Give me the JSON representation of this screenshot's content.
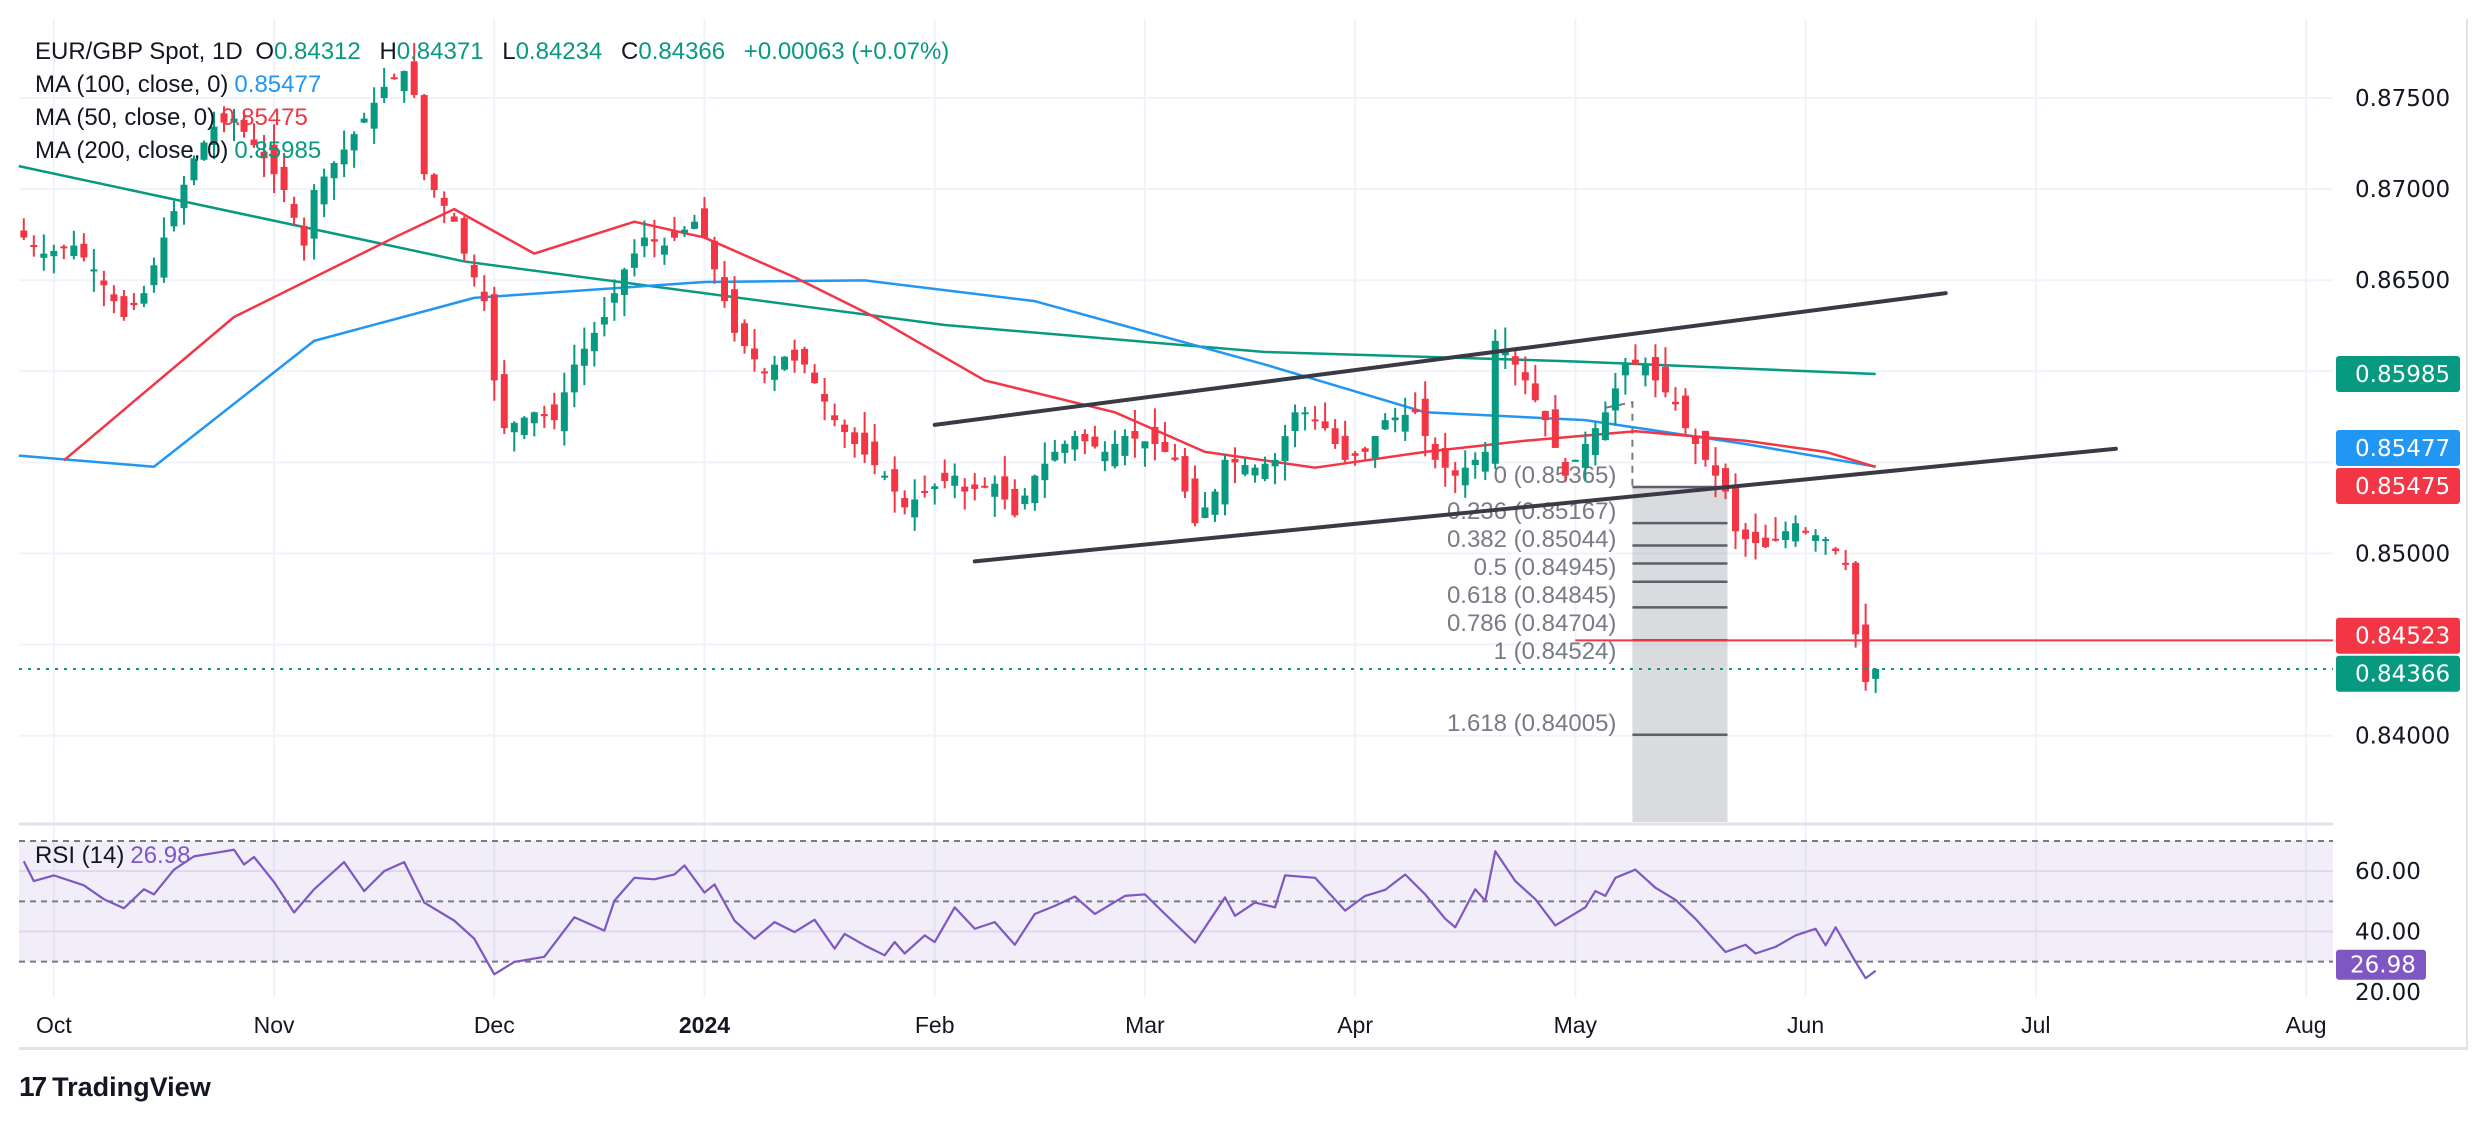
{
  "legend": {
    "symbol": "EUR/GBP Spot, 1D",
    "o_label": "O",
    "o_value": "0.84312",
    "h_label": "H",
    "h_value": "0.84371",
    "l_label": "L",
    "l_value": "0.84234",
    "c_label": "C",
    "c_value": "0.84366",
    "change": "+0.00063 (+0.07%)",
    "ma100_label": "MA (100, close, 0)",
    "ma100_value": "0.85477",
    "ma50_label": "MA (50, close, 0)",
    "ma50_value": "0.85475",
    "ma200_label": "MA (200, close, 0)",
    "ma200_value": "0.85985",
    "rsi_label": "RSI (14)",
    "rsi_value": "26.98"
  },
  "colors": {
    "up": "#089981",
    "down": "#f23645",
    "ma100": "#2196f3",
    "ma50": "#f23645",
    "ma200": "#089981",
    "rsi": "#7e57c2",
    "trendline": "#3a3a45"
  },
  "footer": {
    "brand": "TradingView"
  },
  "chart_data": {
    "type": "candlestick",
    "title": "EUR/GBP Spot, 1D",
    "ylim": [
      0.8355,
      0.8785
    ],
    "price_ticks": [
      "0.87500",
      "0.87000",
      "0.86500",
      "0.86000",
      "0.85500",
      "0.85000",
      "0.84500",
      "0.84000"
    ],
    "price_tick_values_shown": [
      "0.87500",
      "0.87000",
      "0.86500",
      "0.85000",
      "0.84000"
    ],
    "time_labels": [
      {
        "label": "Oct",
        "bar": 3
      },
      {
        "label": "Nov",
        "bar": 25
      },
      {
        "label": "Dec",
        "bar": 47
      },
      {
        "label": "2024",
        "bar": 68,
        "bold": true
      },
      {
        "label": "Feb",
        "bar": 91
      },
      {
        "label": "Mar",
        "bar": 112
      },
      {
        "label": "Apr",
        "bar": 133
      },
      {
        "label": "May",
        "bar": 155
      },
      {
        "label": "Jun",
        "bar": 178
      },
      {
        "label": "Jul",
        "bar": 201
      },
      {
        "label": "Aug",
        "bar": 228
      }
    ],
    "close_keypoints": [
      [
        0,
        0.86734
      ],
      [
        2,
        0.86646
      ],
      [
        5,
        0.8669
      ],
      [
        7,
        0.86559
      ],
      [
        10,
        0.86298
      ],
      [
        12,
        0.86429
      ],
      [
        14,
        0.86734
      ],
      [
        17,
        0.87169
      ],
      [
        19,
        0.87343
      ],
      [
        21,
        0.87387
      ],
      [
        24,
        0.87169
      ],
      [
        26,
        0.86995
      ],
      [
        28,
        0.8669
      ],
      [
        29,
        0.86995
      ],
      [
        32,
        0.87217
      ],
      [
        34,
        0.87387
      ],
      [
        36,
        0.87561
      ],
      [
        38,
        0.87648
      ],
      [
        39,
        0.87517
      ],
      [
        40,
        0.87082
      ],
      [
        43,
        0.86821
      ],
      [
        44,
        0.86646
      ],
      [
        46,
        0.86385
      ],
      [
        47,
        0.8595
      ],
      [
        48,
        0.85688
      ],
      [
        51,
        0.85775
      ],
      [
        53,
        0.85732
      ],
      [
        55,
        0.86037
      ],
      [
        58,
        0.86298
      ],
      [
        60,
        0.86559
      ],
      [
        62,
        0.86734
      ],
      [
        64,
        0.8669
      ],
      [
        67,
        0.86821
      ],
      [
        68,
        0.86734
      ],
      [
        70,
        0.86385
      ],
      [
        71,
        0.86211
      ],
      [
        74,
        0.85993
      ],
      [
        76,
        0.8608
      ],
      [
        78,
        0.86037
      ],
      [
        81,
        0.85732
      ],
      [
        83,
        0.85601
      ],
      [
        86,
        0.85427
      ],
      [
        88,
        0.85253
      ],
      [
        90,
        0.8534
      ],
      [
        93,
        0.85427
      ],
      [
        94,
        0.8534
      ],
      [
        97,
        0.85383
      ],
      [
        99,
        0.85209
      ],
      [
        101,
        0.85427
      ],
      [
        103,
        0.85558
      ],
      [
        105,
        0.85645
      ],
      [
        108,
        0.85558
      ],
      [
        110,
        0.85645
      ],
      [
        113,
        0.85601
      ],
      [
        115,
        0.85514
      ],
      [
        117,
        0.85166
      ],
      [
        119,
        0.8534
      ],
      [
        120,
        0.85514
      ],
      [
        123,
        0.85471
      ],
      [
        125,
        0.85514
      ],
      [
        127,
        0.85775
      ],
      [
        128,
        0.85775
      ],
      [
        130,
        0.85688
      ],
      [
        132,
        0.85514
      ],
      [
        134,
        0.85558
      ],
      [
        136,
        0.85732
      ],
      [
        139,
        0.85775
      ],
      [
        141,
        0.85514
      ],
      [
        143,
        0.85427
      ],
      [
        144,
        0.85471
      ],
      [
        146,
        0.85558
      ],
      [
        147,
        0.86167
      ],
      [
        148,
        0.86123
      ],
      [
        150,
        0.8595
      ],
      [
        152,
        0.85732
      ],
      [
        154,
        0.85427
      ],
      [
        155,
        0.85514
      ],
      [
        157,
        0.85688
      ],
      [
        158,
        0.85775
      ],
      [
        160,
        0.86037
      ],
      [
        162,
        0.86037
      ],
      [
        163,
        0.8595
      ],
      [
        165,
        0.85819
      ],
      [
        166,
        0.85688
      ],
      [
        168,
        0.85514
      ],
      [
        170,
        0.8534
      ],
      [
        171,
        0.85122
      ],
      [
        172,
        0.85079
      ],
      [
        174,
        0.85035
      ],
      [
        175,
        0.85079
      ],
      [
        177,
        0.85166
      ],
      [
        178,
        0.85122
      ],
      [
        180,
        0.85079
      ],
      [
        182,
        0.84948
      ],
      [
        183,
        0.84556
      ],
      [
        184,
        0.84295
      ],
      [
        185,
        0.84366
      ]
    ],
    "last_ohlc": {
      "open": 0.84312,
      "high": 0.84371,
      "low": 0.84234,
      "close": 0.84366
    },
    "series": [
      {
        "name": "MA (200, close, 0)",
        "color": "#089981",
        "points": [
          [
            -0.5,
            0.87126
          ],
          [
            44,
            0.86603
          ],
          [
            92,
            0.86254
          ],
          [
            124,
            0.86106
          ],
          [
            155,
            0.86054
          ],
          [
            185,
            0.85985
          ]
        ]
      },
      {
        "name": "MA (100, close, 0)",
        "color": "#2196f3",
        "points": [
          [
            -0.5,
            0.85537
          ],
          [
            13,
            0.85476
          ],
          [
            29,
            0.86167
          ],
          [
            45,
            0.86403
          ],
          [
            68,
            0.8649
          ],
          [
            84,
            0.86499
          ],
          [
            101,
            0.86385
          ],
          [
            124,
            0.86037
          ],
          [
            140,
            0.85775
          ],
          [
            156,
            0.85732
          ],
          [
            172,
            0.85601
          ],
          [
            185,
            0.85477
          ]
        ]
      },
      {
        "name": "MA (50, close, 0)",
        "color": "#f23645",
        "points": [
          [
            4,
            0.85511
          ],
          [
            21,
            0.86298
          ],
          [
            37,
            0.86734
          ],
          [
            43,
            0.8689
          ],
          [
            51,
            0.86646
          ],
          [
            61,
            0.86821
          ],
          [
            68,
            0.86734
          ],
          [
            77,
            0.86516
          ],
          [
            85,
            0.86298
          ],
          [
            96,
            0.8595
          ],
          [
            109,
            0.85775
          ],
          [
            118,
            0.85558
          ],
          [
            129,
            0.85471
          ],
          [
            140,
            0.85558
          ],
          [
            150,
            0.85619
          ],
          [
            161,
            0.85671
          ],
          [
            172,
            0.85619
          ],
          [
            180,
            0.85558
          ],
          [
            185,
            0.85475
          ]
        ]
      }
    ],
    "trendlines": [
      {
        "name": "channel-upper",
        "from": [
          91,
          0.85706
        ],
        "to": [
          192,
          0.86429
        ]
      },
      {
        "name": "channel-lower",
        "from": [
          95,
          0.84957
        ],
        "to": [
          209,
          0.85575
        ]
      }
    ],
    "fibonacci": {
      "levels": [
        {
          "ratio": "0",
          "price": 0.85365,
          "label": "0 (0.85365)"
        },
        {
          "ratio": "0.236",
          "price": 0.85167,
          "label": "0.236 (0.85167)"
        },
        {
          "ratio": "0.382",
          "price": 0.85044,
          "label": "0.382 (0.85044)"
        },
        {
          "ratio": "0.5",
          "price": 0.84945,
          "label": "0.5 (0.84945)"
        },
        {
          "ratio": "0.618",
          "price": 0.84845,
          "label": "0.618 (0.84845)"
        },
        {
          "ratio": "0.786",
          "price": 0.84704,
          "label": "0.786 (0.84704)"
        },
        {
          "ratio": "1",
          "price": 0.84524,
          "label": "1 (0.84524)"
        },
        {
          "ratio": "1.618",
          "price": 0.84005,
          "label": "1.618 (0.84005)"
        }
      ],
      "bar_from": 161,
      "bar_to": 170,
      "anchor_top_price": 0.858
    },
    "horizontal_lines": [
      {
        "name": "support-line",
        "price": 0.84523,
        "label": "0.84523",
        "color": "#f23645",
        "from_bar": 155
      },
      {
        "name": "last-price-line",
        "price": 0.84366,
        "label": "0.84366",
        "color": "#089981",
        "dotted": true
      }
    ],
    "price_badges": [
      {
        "name": "ma200-badge",
        "label": "0.85985",
        "price": 0.85985,
        "color": "#089981"
      },
      {
        "name": "ma100-badge",
        "label": "0.85477",
        "price": 0.8552,
        "color": "#2196f3"
      },
      {
        "name": "ma50-badge",
        "label": "0.85475",
        "price": 0.8543,
        "color": "#f23645"
      },
      {
        "name": "support-badge",
        "label": "0.84523",
        "price": 0.84523,
        "color": "#f23645"
      },
      {
        "name": "last-price-badge",
        "label": "0.84366",
        "price": 0.84366,
        "color": "#089981"
      }
    ],
    "rsi": {
      "name": "RSI (14)",
      "levels": [
        70,
        50,
        30
      ],
      "ticks": [
        "60.00",
        "40.00",
        "20.00"
      ],
      "tick_values": [
        60,
        40,
        20
      ],
      "last": "26.98",
      "points": [
        [
          0,
          63.3
        ],
        [
          1,
          56.7
        ],
        [
          3,
          58.6
        ],
        [
          6,
          55.3
        ],
        [
          8,
          50.7
        ],
        [
          10,
          47.7
        ],
        [
          12,
          54
        ],
        [
          13,
          52.3
        ],
        [
          15,
          60.5
        ],
        [
          17,
          64.9
        ],
        [
          19,
          66
        ],
        [
          21,
          67.1
        ],
        [
          22,
          62.2
        ],
        [
          23,
          64.7
        ],
        [
          25,
          56.4
        ],
        [
          27,
          46.3
        ],
        [
          29,
          54
        ],
        [
          32,
          63
        ],
        [
          34,
          53.4
        ],
        [
          36,
          60
        ],
        [
          38,
          63
        ],
        [
          40,
          49.6
        ],
        [
          43,
          43.6
        ],
        [
          45,
          37.6
        ],
        [
          47,
          25.8
        ],
        [
          49,
          29.9
        ],
        [
          52,
          31.6
        ],
        [
          55,
          44.7
        ],
        [
          58,
          40.3
        ],
        [
          59,
          50.2
        ],
        [
          61,
          57.8
        ],
        [
          63,
          57.3
        ],
        [
          65,
          58.9
        ],
        [
          66,
          61.9
        ],
        [
          68,
          52.9
        ],
        [
          69,
          55.6
        ],
        [
          71,
          43.6
        ],
        [
          73,
          37.6
        ],
        [
          75,
          43.1
        ],
        [
          77,
          39.8
        ],
        [
          79,
          43.9
        ],
        [
          81,
          34.3
        ],
        [
          82,
          39.2
        ],
        [
          84,
          35.4
        ],
        [
          86,
          32.1
        ],
        [
          87,
          36.5
        ],
        [
          88,
          32.7
        ],
        [
          90,
          38.7
        ],
        [
          91,
          36.5
        ],
        [
          93,
          48
        ],
        [
          95,
          40.9
        ],
        [
          97,
          43.1
        ],
        [
          99,
          35.6
        ],
        [
          101,
          45.8
        ],
        [
          103,
          48.5
        ],
        [
          105,
          51.6
        ],
        [
          107,
          45.8
        ],
        [
          110,
          51.8
        ],
        [
          112,
          52.3
        ],
        [
          114,
          45.8
        ],
        [
          117,
          36.3
        ],
        [
          120,
          51.3
        ],
        [
          121,
          45.2
        ],
        [
          123,
          49.6
        ],
        [
          125,
          48
        ],
        [
          126,
          58.6
        ],
        [
          129,
          57.8
        ],
        [
          132,
          46.9
        ],
        [
          134,
          51.8
        ],
        [
          136,
          53.8
        ],
        [
          138,
          58.9
        ],
        [
          140,
          52.3
        ],
        [
          142,
          44.2
        ],
        [
          143,
          41.4
        ],
        [
          145,
          54
        ],
        [
          146,
          50.2
        ],
        [
          147,
          66.6
        ],
        [
          149,
          56.7
        ],
        [
          151,
          50.7
        ],
        [
          153,
          42
        ],
        [
          156,
          48
        ],
        [
          157,
          53.4
        ],
        [
          158,
          51.8
        ],
        [
          159,
          57.8
        ],
        [
          161,
          60.5
        ],
        [
          163,
          54.5
        ],
        [
          165,
          50.5
        ],
        [
          167,
          44.2
        ],
        [
          170,
          33.2
        ],
        [
          172,
          35.6
        ],
        [
          173,
          32.7
        ],
        [
          175,
          34.9
        ],
        [
          177,
          38.7
        ],
        [
          179,
          40.9
        ],
        [
          180,
          35.4
        ],
        [
          181,
          41.4
        ],
        [
          183,
          29.9
        ],
        [
          184,
          24.5
        ],
        [
          185,
          26.98
        ]
      ]
    }
  }
}
